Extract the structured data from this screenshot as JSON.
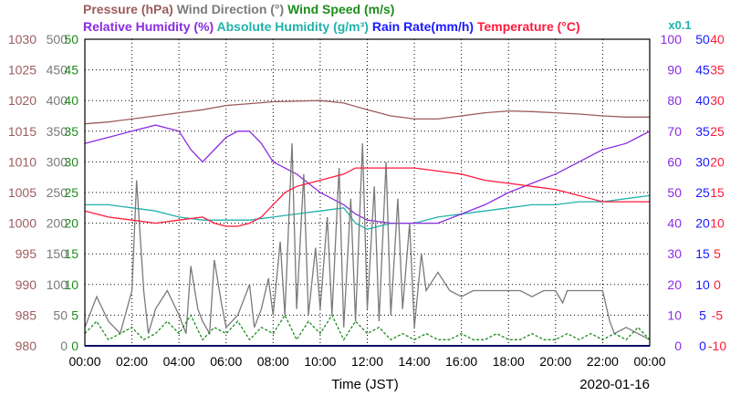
{
  "chart_data": {
    "type": "line",
    "title": "",
    "date": "2020-01-16",
    "xlabel": "Time (JST)",
    "x_ticks": [
      "00:00",
      "02:00",
      "04:00",
      "06:00",
      "08:00",
      "10:00",
      "12:00",
      "14:00",
      "16:00",
      "18:00",
      "20:00",
      "22:00",
      "00:00"
    ],
    "grid": true,
    "legend_row1": [
      {
        "text": "Pressure (hPa)",
        "color": "#9c5c5c"
      },
      {
        "text": "Wind Direction (°)",
        "color": "#7a7a7a"
      },
      {
        "text": "Wind Speed (m/s)",
        "color": "#1e8c1e"
      }
    ],
    "legend_row2": [
      {
        "text": "Relative Humidity (%)",
        "color": "#8a2be2"
      },
      {
        "text": "Absolute Humidity (g/m³)",
        "color": "#20b2aa"
      },
      {
        "text": "Rain Rate(mm/h)",
        "color": "#1a1aff"
      },
      {
        "text": "Temperature (°C)",
        "color": "#ff1a3c"
      },
      {
        "text": "x0.1",
        "color": "#20b2aa"
      }
    ],
    "axes": {
      "pressure": {
        "label": "Pressure (hPa)",
        "color": "#9c5c5c",
        "range": [
          980,
          1030
        ],
        "ticks": [
          "1030",
          "1025",
          "1020",
          "1015",
          "1010",
          "1005",
          "1000",
          "995",
          "990",
          "985",
          "980"
        ]
      },
      "wind_direction": {
        "label": "Wind Direction (°)",
        "color": "#7a7a7a",
        "range": [
          0,
          500
        ],
        "ticks": [
          "500",
          "450",
          "400",
          "350",
          "300",
          "250",
          "200",
          "150",
          "100",
          "50",
          "0"
        ]
      },
      "wind_speed": {
        "label": "Wind Speed (m/s)",
        "color": "#1e8c1e",
        "range": [
          0,
          50
        ],
        "ticks": [
          "50",
          "45",
          "40",
          "35",
          "30",
          "25",
          "20",
          "15",
          "10",
          "5",
          "0"
        ]
      },
      "humidity": {
        "label": "Relative Humidity (%)",
        "color": "#8a2be2",
        "range": [
          0,
          100
        ],
        "ticks": [
          "100",
          "90",
          "80",
          "70",
          "60",
          "50",
          "40",
          "30",
          "20",
          "10",
          "0"
        ]
      },
      "rain": {
        "label": "Rain Rate(mm/h)",
        "color": "#1a1aff",
        "range": [
          0,
          50
        ],
        "ticks": [
          "50",
          "45",
          "40",
          "35",
          "30",
          "25",
          "20",
          "15",
          "10",
          "5",
          "0"
        ]
      },
      "temperature": {
        "label": "Temperature (°C)",
        "color": "#ff1a3c",
        "range": [
          -10,
          40
        ],
        "ticks": [
          "40",
          "35",
          "30",
          "25",
          "20",
          "15",
          "10",
          "5",
          "0",
          "-5",
          "-10"
        ]
      }
    },
    "series": [
      {
        "name": "Pressure (hPa)",
        "axis": "pressure",
        "color": "#9c5c5c",
        "x": [
          0,
          1,
          2,
          3,
          4,
          5,
          6,
          7,
          8,
          9,
          10,
          11,
          12,
          13,
          14,
          15,
          16,
          17,
          18,
          19,
          20,
          21,
          22,
          23,
          24
        ],
        "y": [
          1016.2,
          1016.5,
          1017,
          1017.5,
          1018,
          1018.5,
          1019.2,
          1019.5,
          1019.8,
          1019.9,
          1020,
          1019.6,
          1018.5,
          1017.5,
          1017,
          1017,
          1017.5,
          1018,
          1018.3,
          1018.2,
          1018,
          1017.8,
          1017.5,
          1017.3,
          1017.3
        ]
      },
      {
        "name": "Relative Humidity (%)",
        "axis": "humidity",
        "color": "#8a2be2",
        "x": [
          0,
          1,
          2,
          3,
          4,
          4.5,
          5,
          5.5,
          6,
          6.5,
          7,
          7.5,
          8,
          8.5,
          9,
          9.5,
          10,
          10.5,
          11,
          11.5,
          12,
          13,
          14,
          15,
          16,
          17,
          18,
          19,
          20,
          21,
          22,
          23,
          23.5,
          24
        ],
        "y": [
          66,
          68,
          70,
          72,
          70,
          64,
          60,
          64,
          68,
          70,
          70,
          66,
          60,
          58,
          56,
          53,
          50,
          48,
          46,
          43,
          41,
          40,
          40,
          40,
          43,
          46,
          50,
          53,
          56,
          60,
          64,
          66,
          68,
          70
        ]
      },
      {
        "name": "Absolute Humidity (g/m³)",
        "axis": "humidity",
        "color": "#20b2aa",
        "x": [
          0,
          1,
          2,
          3,
          4,
          5,
          6,
          7,
          8,
          9,
          10,
          11,
          11.5,
          12,
          13,
          14,
          15,
          16,
          17,
          18,
          19,
          20,
          21,
          22,
          23,
          24
        ],
        "y": [
          46,
          46,
          45,
          44,
          42,
          41,
          41,
          41,
          42,
          43,
          44,
          45,
          40,
          38,
          40,
          40,
          42,
          43,
          44,
          45,
          46,
          46,
          47,
          47,
          48,
          49
        ]
      },
      {
        "name": "Rain Rate(mm/h)",
        "axis": "rain",
        "color": "#1a1aff",
        "x": [
          0,
          24
        ],
        "y": [
          0,
          0
        ]
      },
      {
        "name": "Temperature (°C)",
        "axis": "temperature",
        "color": "#ff1a3c",
        "x": [
          0,
          1,
          2,
          3,
          4,
          5,
          5.5,
          6,
          6.5,
          7,
          7.5,
          8,
          8.5,
          9,
          10,
          11,
          11.5,
          12,
          13,
          14,
          15,
          16,
          17,
          18,
          19,
          20,
          21,
          22,
          23,
          24
        ],
        "y": [
          12,
          11,
          10.5,
          10,
          10.5,
          11,
          10,
          9.5,
          9.5,
          10,
          11,
          13,
          15,
          16,
          17,
          18,
          19,
          19,
          19,
          19,
          18.5,
          18,
          17,
          16.5,
          16,
          15.5,
          14.5,
          13.5,
          13.5,
          13.5
        ]
      },
      {
        "name": "Wind Direction (°)",
        "axis": "wind_direction",
        "color": "#7a7a7a",
        "x": [
          0,
          0.5,
          1,
          1.5,
          2,
          2.2,
          2.5,
          2.7,
          3,
          3.5,
          4,
          4.3,
          4.5,
          4.8,
          5,
          5.3,
          5.5,
          5.8,
          6,
          6.5,
          7,
          7.2,
          7.5,
          7.8,
          8,
          8.3,
          8.5,
          8.8,
          9,
          9.3,
          9.5,
          9.8,
          10,
          10.3,
          10.5,
          10.8,
          11,
          11.3,
          11.5,
          11.8,
          12,
          12.3,
          12.5,
          12.8,
          13,
          13.3,
          13.5,
          13.8,
          14,
          14.3,
          14.5,
          15,
          15.5,
          16,
          16.5,
          17,
          17.5,
          18,
          18.5,
          19,
          19.5,
          20,
          20.3,
          20.5,
          20.8,
          21,
          21.5,
          22,
          22.3,
          22.5,
          23,
          23.5,
          24
        ],
        "y": [
          30,
          80,
          40,
          20,
          90,
          270,
          90,
          20,
          60,
          90,
          50,
          20,
          130,
          60,
          40,
          20,
          140,
          70,
          30,
          50,
          100,
          30,
          60,
          110,
          50,
          170,
          50,
          330,
          60,
          280,
          50,
          160,
          60,
          210,
          50,
          290,
          30,
          240,
          40,
          330,
          60,
          260,
          40,
          300,
          50,
          240,
          60,
          200,
          30,
          150,
          90,
          120,
          90,
          80,
          90,
          90,
          90,
          90,
          90,
          80,
          90,
          90,
          70,
          90,
          90,
          90,
          90,
          90,
          40,
          20,
          30,
          20,
          10
        ]
      },
      {
        "name": "Wind Speed (m/s)",
        "axis": "wind_speed",
        "color": "#1e8c1e",
        "x": [
          0,
          0.5,
          1,
          1.5,
          2,
          2.5,
          3,
          3.5,
          4,
          4.5,
          5,
          5.5,
          6,
          6.5,
          7,
          7.5,
          8,
          8.5,
          9,
          9.5,
          10,
          10.5,
          11,
          11.5,
          12,
          12.5,
          13,
          13.5,
          14,
          14.5,
          15,
          15.5,
          16,
          16.5,
          17,
          17.5,
          18,
          18.5,
          19,
          19.5,
          20,
          20.5,
          21,
          21.5,
          22,
          22.5,
          23,
          23.5,
          24
        ],
        "y": [
          2,
          4,
          1,
          2,
          3,
          1,
          2,
          4,
          2,
          5,
          1,
          3,
          2,
          4,
          1,
          3,
          2,
          5,
          1,
          4,
          2,
          5,
          1,
          4,
          2,
          3,
          1,
          2,
          1,
          2,
          1,
          1,
          2,
          1,
          1,
          2,
          1,
          1,
          2,
          1,
          1,
          2,
          1,
          2,
          1,
          2,
          1,
          3,
          1
        ]
      }
    ]
  }
}
